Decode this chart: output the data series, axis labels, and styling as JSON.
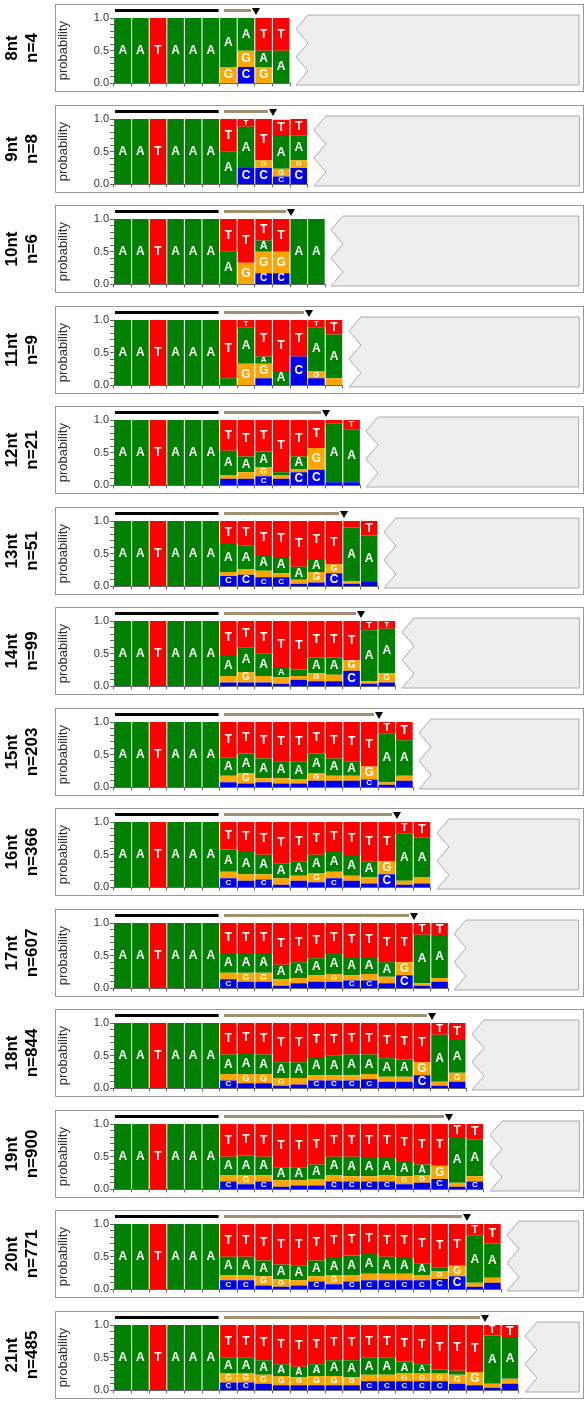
{
  "chart_data": [
    {
      "type": "bar",
      "title": "8nt",
      "subtitle": "n=4",
      "ylabel": "probability",
      "stacked": true,
      "ylim": [
        0,
        1
      ],
      "yticks": [
        {
          "value": 0,
          "label": "0.0"
        },
        {
          "value": 0.1,
          "label": null
        },
        {
          "value": 0.2,
          "label": null
        },
        {
          "value": 0.3,
          "label": null
        },
        {
          "value": 0.4,
          "label": null
        },
        {
          "value": 0.5,
          "label": "0.5"
        },
        {
          "value": 0.6,
          "label": null
        },
        {
          "value": 0.7,
          "label": null
        },
        {
          "value": 0.8,
          "label": null
        },
        {
          "value": 0.9,
          "label": null
        },
        {
          "value": 1,
          "label": "1.0"
        }
      ],
      "tick_labels": "y",
      "legend": false,
      "categories": [
        null,
        null,
        null,
        null,
        null,
        null,
        null,
        null,
        null,
        null
      ],
      "series": [
        {
          "name": "C",
          "color": "#0000ee",
          "values": [
            0,
            0,
            0,
            0,
            0,
            0,
            0,
            0.25,
            0,
            0
          ]
        },
        {
          "name": "G",
          "color": "#ffa500",
          "values": [
            0,
            0,
            0,
            0,
            0,
            0,
            0.25,
            0.25,
            0.25,
            0
          ]
        },
        {
          "name": "A",
          "color": "#008000",
          "values": [
            1,
            1,
            0,
            1,
            1,
            1,
            0.75,
            0.5,
            0.25,
            0.5
          ]
        },
        {
          "name": "T",
          "color": "#ff0000",
          "values": [
            0,
            0,
            1,
            0,
            0,
            0,
            0,
            0,
            0.5,
            0.5
          ]
        }
      ]
    },
    {
      "type": "bar",
      "title": "9nt",
      "subtitle": "n=8",
      "ylabel": "probability",
      "stacked": true,
      "ylim": [
        0,
        1
      ],
      "yticks": [
        {
          "value": 0,
          "label": "0.0"
        },
        {
          "value": 0.1,
          "label": null
        },
        {
          "value": 0.2,
          "label": null
        },
        {
          "value": 0.3,
          "label": null
        },
        {
          "value": 0.4,
          "label": null
        },
        {
          "value": 0.5,
          "label": "0.5"
        },
        {
          "value": 0.6,
          "label": null
        },
        {
          "value": 0.7,
          "label": null
        },
        {
          "value": 0.8,
          "label": null
        },
        {
          "value": 0.9,
          "label": null
        },
        {
          "value": 1,
          "label": "1.0"
        }
      ],
      "tick_labels": "y",
      "legend": false,
      "categories": [
        null,
        null,
        null,
        null,
        null,
        null,
        null,
        null,
        null,
        null,
        null
      ],
      "series": [
        {
          "name": "C",
          "color": "#0000ee",
          "values": [
            0,
            0,
            0,
            0,
            0,
            0,
            0,
            0.25,
            0.25,
            0.12,
            0.25
          ]
        },
        {
          "name": "G",
          "color": "#ffa500",
          "values": [
            0,
            0,
            0,
            0,
            0,
            0,
            0,
            0,
            0.12,
            0.12,
            0.12
          ]
        },
        {
          "name": "A",
          "color": "#008000",
          "values": [
            1,
            1,
            0,
            1,
            1,
            1,
            0.5,
            0.63,
            0,
            0.5,
            0.38
          ]
        },
        {
          "name": "T",
          "color": "#ff0000",
          "values": [
            0,
            0,
            1,
            0,
            0,
            0,
            0.5,
            0.12,
            0.63,
            0.25,
            0.25
          ]
        }
      ]
    },
    {
      "type": "bar",
      "title": "10nt",
      "subtitle": "n=6",
      "ylabel": "probability",
      "stacked": true,
      "ylim": [
        0,
        1
      ],
      "yticks": [
        {
          "value": 0,
          "label": "0.0"
        },
        {
          "value": 0.1,
          "label": null
        },
        {
          "value": 0.2,
          "label": null
        },
        {
          "value": 0.3,
          "label": null
        },
        {
          "value": 0.4,
          "label": null
        },
        {
          "value": 0.5,
          "label": "0.5"
        },
        {
          "value": 0.6,
          "label": null
        },
        {
          "value": 0.7,
          "label": null
        },
        {
          "value": 0.8,
          "label": null
        },
        {
          "value": 0.9,
          "label": null
        },
        {
          "value": 1,
          "label": "1.0"
        }
      ],
      "tick_labels": "y",
      "legend": false,
      "categories": [
        null,
        null,
        null,
        null,
        null,
        null,
        null,
        null,
        null,
        null,
        null,
        null
      ],
      "series": [
        {
          "name": "C",
          "color": "#0000ee",
          "values": [
            0,
            0,
            0,
            0,
            0,
            0,
            0,
            0,
            0.17,
            0.17,
            0,
            0
          ]
        },
        {
          "name": "G",
          "color": "#ffa500",
          "values": [
            0,
            0,
            0,
            0,
            0,
            0,
            0,
            0.33,
            0.33,
            0.33,
            0,
            0
          ]
        },
        {
          "name": "A",
          "color": "#008000",
          "values": [
            1,
            1,
            0,
            1,
            1,
            1,
            0.5,
            0,
            0.17,
            0,
            1,
            1
          ]
        },
        {
          "name": "T",
          "color": "#ff0000",
          "values": [
            0,
            0,
            1,
            0,
            0,
            0,
            0.5,
            0.67,
            0.33,
            0.5,
            0,
            0
          ]
        }
      ]
    },
    {
      "type": "bar",
      "title": "11nt",
      "subtitle": "n=9",
      "ylabel": "probability",
      "stacked": true,
      "ylim": [
        0,
        1
      ],
      "yticks": [
        {
          "value": 0,
          "label": "0.0"
        },
        {
          "value": 0.1,
          "label": null
        },
        {
          "value": 0.2,
          "label": null
        },
        {
          "value": 0.3,
          "label": null
        },
        {
          "value": 0.4,
          "label": null
        },
        {
          "value": 0.5,
          "label": "0.5"
        },
        {
          "value": 0.6,
          "label": null
        },
        {
          "value": 0.7,
          "label": null
        },
        {
          "value": 0.8,
          "label": null
        },
        {
          "value": 0.9,
          "label": null
        },
        {
          "value": 1,
          "label": "1.0"
        }
      ],
      "tick_labels": "y",
      "legend": false,
      "categories": [
        null,
        null,
        null,
        null,
        null,
        null,
        null,
        null,
        null,
        null,
        null,
        null,
        null
      ],
      "series": [
        {
          "name": "C",
          "color": "#0000ee",
          "values": [
            0,
            0,
            0,
            0,
            0,
            0,
            0,
            0,
            0.11,
            0,
            0.44,
            0.11,
            0
          ]
        },
        {
          "name": "G",
          "color": "#ffa500",
          "values": [
            0,
            0,
            0,
            0,
            0,
            0,
            0,
            0.33,
            0.22,
            0,
            0,
            0.11,
            0.11
          ]
        },
        {
          "name": "A",
          "color": "#008000",
          "values": [
            1,
            1,
            0,
            1,
            1,
            1,
            0.11,
            0.56,
            0.11,
            0.22,
            0,
            0.67,
            0.67
          ]
        },
        {
          "name": "T",
          "color": "#ff0000",
          "values": [
            0,
            0,
            1,
            0,
            0,
            0,
            0.89,
            0.11,
            0.56,
            0.78,
            0.56,
            0.11,
            0.22
          ]
        }
      ]
    },
    {
      "type": "bar",
      "title": "12nt",
      "subtitle": "n=21",
      "ylabel": "probability",
      "stacked": true,
      "ylim": [
        0,
        1
      ],
      "yticks": [
        {
          "value": 0,
          "label": "0.0"
        },
        {
          "value": 0.1,
          "label": null
        },
        {
          "value": 0.2,
          "label": null
        },
        {
          "value": 0.3,
          "label": null
        },
        {
          "value": 0.4,
          "label": null
        },
        {
          "value": 0.5,
          "label": "0.5"
        },
        {
          "value": 0.6,
          "label": null
        },
        {
          "value": 0.7,
          "label": null
        },
        {
          "value": 0.8,
          "label": null
        },
        {
          "value": 0.9,
          "label": null
        },
        {
          "value": 1,
          "label": "1.0"
        }
      ],
      "tick_labels": "y",
      "legend": false,
      "categories": [
        null,
        null,
        null,
        null,
        null,
        null,
        null,
        null,
        null,
        null,
        null,
        null,
        null,
        null
      ],
      "series": [
        {
          "name": "C",
          "color": "#0000ee",
          "values": [
            0,
            0,
            0,
            0,
            0,
            0,
            0.1,
            0.1,
            0.14,
            0.1,
            0.2,
            0.24,
            0.05,
            0.05
          ]
        },
        {
          "name": "G",
          "color": "#ffa500",
          "values": [
            0,
            0,
            0,
            0,
            0,
            0,
            0.05,
            0.1,
            0.14,
            0.05,
            0.05,
            0.33,
            0,
            0
          ]
        },
        {
          "name": "A",
          "color": "#008000",
          "values": [
            1,
            1,
            0,
            1,
            1,
            1,
            0.38,
            0.24,
            0.24,
            0.05,
            0.19,
            0,
            0.9,
            0.81
          ]
        },
        {
          "name": "T",
          "color": "#ff0000",
          "values": [
            0,
            0,
            1,
            0,
            0,
            0,
            0.47,
            0.56,
            0.48,
            0.8,
            0.56,
            0.43,
            0.05,
            0.14
          ]
        }
      ]
    },
    {
      "type": "bar",
      "title": "13nt",
      "subtitle": "n=51",
      "ylabel": "probability",
      "stacked": true,
      "ylim": [
        0,
        1
      ],
      "yticks": [
        {
          "value": 0,
          "label": "0.0"
        },
        {
          "value": 0.1,
          "label": null
        },
        {
          "value": 0.2,
          "label": null
        },
        {
          "value": 0.3,
          "label": null
        },
        {
          "value": 0.4,
          "label": null
        },
        {
          "value": 0.5,
          "label": "0.5"
        },
        {
          "value": 0.6,
          "label": null
        },
        {
          "value": 0.7,
          "label": null
        },
        {
          "value": 0.8,
          "label": null
        },
        {
          "value": 0.9,
          "label": null
        },
        {
          "value": 1,
          "label": "1.0"
        }
      ],
      "tick_labels": "y",
      "legend": false,
      "categories": [
        null,
        null,
        null,
        null,
        null,
        null,
        null,
        null,
        null,
        null,
        null,
        null,
        null,
        null,
        null
      ],
      "series": [
        {
          "name": "C",
          "color": "#0000ee",
          "values": [
            0,
            0,
            0,
            0,
            0,
            0,
            0.16,
            0.18,
            0.14,
            0.14,
            0.04,
            0.06,
            0.2,
            0.04,
            0.08
          ]
        },
        {
          "name": "G",
          "color": "#ffa500",
          "values": [
            0,
            0,
            0,
            0,
            0,
            0,
            0.06,
            0.08,
            0.1,
            0.06,
            0.06,
            0.16,
            0.14,
            0.04,
            0
          ]
        },
        {
          "name": "A",
          "color": "#008000",
          "values": [
            1,
            1,
            0,
            1,
            1,
            1,
            0.43,
            0.37,
            0.24,
            0.25,
            0.2,
            0.2,
            0,
            0.82,
            0.7
          ]
        },
        {
          "name": "T",
          "color": "#ff0000",
          "values": [
            0,
            0,
            1,
            0,
            0,
            0,
            0.35,
            0.37,
            0.52,
            0.55,
            0.7,
            0.58,
            0.66,
            0.1,
            0.22
          ]
        }
      ]
    },
    {
      "type": "bar",
      "title": "14nt",
      "subtitle": "n=99",
      "ylabel": "probability",
      "stacked": true,
      "ylim": [
        0,
        1
      ],
      "yticks": [
        {
          "value": 0,
          "label": "0.0"
        },
        {
          "value": 0.1,
          "label": null
        },
        {
          "value": 0.2,
          "label": null
        },
        {
          "value": 0.3,
          "label": null
        },
        {
          "value": 0.4,
          "label": null
        },
        {
          "value": 0.5,
          "label": "0.5"
        },
        {
          "value": 0.6,
          "label": null
        },
        {
          "value": 0.7,
          "label": null
        },
        {
          "value": 0.8,
          "label": null
        },
        {
          "value": 0.9,
          "label": null
        },
        {
          "value": 1,
          "label": "1.0"
        }
      ],
      "tick_labels": "y",
      "legend": false,
      "categories": [
        null,
        null,
        null,
        null,
        null,
        null,
        null,
        null,
        null,
        null,
        null,
        null,
        null,
        null,
        null,
        null
      ],
      "series": [
        {
          "name": "C",
          "color": "#0000ee",
          "values": [
            0,
            0,
            0,
            0,
            0,
            0,
            0.06,
            0.06,
            0.06,
            0.04,
            0.1,
            0.08,
            0.08,
            0.24,
            0.04,
            0.06
          ]
        },
        {
          "name": "G",
          "color": "#ffa500",
          "values": [
            0,
            0,
            0,
            0,
            0,
            0,
            0.1,
            0.16,
            0.1,
            0.1,
            0.06,
            0.12,
            0.1,
            0.16,
            0.04,
            0.14
          ]
        },
        {
          "name": "A",
          "color": "#008000",
          "values": [
            1,
            1,
            0,
            1,
            1,
            1,
            0.32,
            0.38,
            0.34,
            0.14,
            0.1,
            0.24,
            0.26,
            0,
            0.78,
            0.68
          ]
        },
        {
          "name": "T",
          "color": "#ff0000",
          "values": [
            0,
            0,
            1,
            0,
            0,
            0,
            0.52,
            0.4,
            0.5,
            0.72,
            0.74,
            0.56,
            0.56,
            0.6,
            0.14,
            0.12
          ]
        }
      ]
    },
    {
      "type": "bar",
      "title": "15nt",
      "subtitle": "n=203",
      "ylabel": "probability",
      "stacked": true,
      "ylim": [
        0,
        1
      ],
      "yticks": [
        {
          "value": 0,
          "label": "0.0"
        },
        {
          "value": 0.1,
          "label": null
        },
        {
          "value": 0.2,
          "label": null
        },
        {
          "value": 0.3,
          "label": null
        },
        {
          "value": 0.4,
          "label": null
        },
        {
          "value": 0.5,
          "label": "0.5"
        },
        {
          "value": 0.6,
          "label": null
        },
        {
          "value": 0.7,
          "label": null
        },
        {
          "value": 0.8,
          "label": null
        },
        {
          "value": 0.9,
          "label": null
        },
        {
          "value": 1,
          "label": "1.0"
        }
      ],
      "tick_labels": "y",
      "legend": false,
      "categories": [
        null,
        null,
        null,
        null,
        null,
        null,
        null,
        null,
        null,
        null,
        null,
        null,
        null,
        null,
        null,
        null,
        null
      ],
      "series": [
        {
          "name": "C",
          "color": "#0000ee",
          "values": [
            0,
            0,
            0,
            0,
            0,
            0,
            0.08,
            0.06,
            0.08,
            0.06,
            0.06,
            0.1,
            0.1,
            0.1,
            0.12,
            0.04,
            0.1
          ]
        },
        {
          "name": "G",
          "color": "#ffa500",
          "values": [
            0,
            0,
            0,
            0,
            0,
            0,
            0.1,
            0.16,
            0.06,
            0.08,
            0.06,
            0.12,
            0.08,
            0.08,
            0.2,
            0.04,
            0.08
          ]
        },
        {
          "name": "A",
          "color": "#008000",
          "values": [
            1,
            1,
            0,
            1,
            1,
            1,
            0.28,
            0.3,
            0.3,
            0.26,
            0.28,
            0.3,
            0.26,
            0.22,
            0,
            0.74,
            0.54
          ]
        },
        {
          "name": "T",
          "color": "#ff0000",
          "values": [
            0,
            0,
            1,
            0,
            0,
            0,
            0.54,
            0.48,
            0.56,
            0.6,
            0.6,
            0.48,
            0.56,
            0.6,
            0.68,
            0.18,
            0.28
          ]
        }
      ]
    },
    {
      "type": "bar",
      "title": "16nt",
      "subtitle": "n=366",
      "ylabel": "probability",
      "stacked": true,
      "ylim": [
        0,
        1
      ],
      "yticks": [
        {
          "value": 0,
          "label": "0.0"
        },
        {
          "value": 0.1,
          "label": null
        },
        {
          "value": 0.2,
          "label": null
        },
        {
          "value": 0.3,
          "label": null
        },
        {
          "value": 0.4,
          "label": null
        },
        {
          "value": 0.5,
          "label": "0.5"
        },
        {
          "value": 0.6,
          "label": null
        },
        {
          "value": 0.7,
          "label": null
        },
        {
          "value": 0.8,
          "label": null
        },
        {
          "value": 0.9,
          "label": null
        },
        {
          "value": 1,
          "label": "1.0"
        }
      ],
      "tick_labels": "y",
      "legend": false,
      "categories": [
        null,
        null,
        null,
        null,
        null,
        null,
        null,
        null,
        null,
        null,
        null,
        null,
        null,
        null,
        null,
        null,
        null,
        null
      ],
      "series": [
        {
          "name": "C",
          "color": "#0000ee",
          "values": [
            0,
            0,
            0,
            0,
            0,
            0,
            0.14,
            0.1,
            0.12,
            0.04,
            0.1,
            0.08,
            0.14,
            0.1,
            0.06,
            0.2,
            0.04,
            0.06
          ]
        },
        {
          "name": "G",
          "color": "#ffa500",
          "values": [
            0,
            0,
            0,
            0,
            0,
            0,
            0.1,
            0.1,
            0.08,
            0.1,
            0.08,
            0.14,
            0.1,
            0.08,
            0.1,
            0.2,
            0.06,
            0.1
          ]
        },
        {
          "name": "A",
          "color": "#008000",
          "values": [
            1,
            1,
            0,
            1,
            1,
            1,
            0.34,
            0.34,
            0.3,
            0.22,
            0.22,
            0.28,
            0.3,
            0.3,
            0.24,
            0,
            0.72,
            0.6
          ]
        },
        {
          "name": "T",
          "color": "#ff0000",
          "values": [
            0,
            0,
            1,
            0,
            0,
            0,
            0.42,
            0.46,
            0.5,
            0.64,
            0.6,
            0.5,
            0.46,
            0.52,
            0.6,
            0.6,
            0.18,
            0.24
          ]
        }
      ]
    },
    {
      "type": "bar",
      "title": "17nt",
      "subtitle": "n=607",
      "ylabel": "probability",
      "stacked": true,
      "ylim": [
        0,
        1
      ],
      "yticks": [
        {
          "value": 0,
          "label": "0.0"
        },
        {
          "value": 0.1,
          "label": null
        },
        {
          "value": 0.2,
          "label": null
        },
        {
          "value": 0.3,
          "label": null
        },
        {
          "value": 0.4,
          "label": null
        },
        {
          "value": 0.5,
          "label": "0.5"
        },
        {
          "value": 0.6,
          "label": null
        },
        {
          "value": 0.7,
          "label": null
        },
        {
          "value": 0.8,
          "label": null
        },
        {
          "value": 0.9,
          "label": null
        },
        {
          "value": 1,
          "label": "1.0"
        }
      ],
      "tick_labels": "y",
      "legend": false,
      "categories": [
        null,
        null,
        null,
        null,
        null,
        null,
        null,
        null,
        null,
        null,
        null,
        null,
        null,
        null,
        null,
        null,
        null,
        null,
        null
      ],
      "series": [
        {
          "name": "C",
          "color": "#0000ee",
          "values": [
            0,
            0,
            0,
            0,
            0,
            0,
            0.14,
            0.1,
            0.1,
            0.04,
            0.08,
            0.1,
            0.1,
            0.12,
            0.12,
            0.08,
            0.2,
            0.04,
            0.1
          ]
        },
        {
          "name": "G",
          "color": "#ffa500",
          "values": [
            0,
            0,
            0,
            0,
            0,
            0,
            0.1,
            0.14,
            0.14,
            0.1,
            0.08,
            0.1,
            0.12,
            0.08,
            0.1,
            0.1,
            0.2,
            0.04,
            0.06
          ]
        },
        {
          "name": "A",
          "color": "#008000",
          "values": [
            1,
            1,
            0,
            1,
            1,
            1,
            0.3,
            0.3,
            0.3,
            0.22,
            0.24,
            0.26,
            0.32,
            0.28,
            0.26,
            0.22,
            0,
            0.74,
            0.64
          ]
        },
        {
          "name": "T",
          "color": "#ff0000",
          "values": [
            0,
            0,
            1,
            0,
            0,
            0,
            0.46,
            0.46,
            0.46,
            0.64,
            0.6,
            0.54,
            0.46,
            0.52,
            0.52,
            0.6,
            0.6,
            0.18,
            0.2
          ]
        }
      ]
    },
    {
      "type": "bar",
      "title": "18nt",
      "subtitle": "n=844",
      "ylabel": "probability",
      "stacked": true,
      "ylim": [
        0,
        1
      ],
      "yticks": [
        {
          "value": 0,
          "label": "0.0"
        },
        {
          "value": 0.1,
          "label": null
        },
        {
          "value": 0.2,
          "label": null
        },
        {
          "value": 0.3,
          "label": null
        },
        {
          "value": 0.4,
          "label": null
        },
        {
          "value": 0.5,
          "label": "0.5"
        },
        {
          "value": 0.6,
          "label": null
        },
        {
          "value": 0.7,
          "label": null
        },
        {
          "value": 0.8,
          "label": null
        },
        {
          "value": 0.9,
          "label": null
        },
        {
          "value": 1,
          "label": "1.0"
        }
      ],
      "tick_labels": "y",
      "legend": false,
      "categories": [
        null,
        null,
        null,
        null,
        null,
        null,
        null,
        null,
        null,
        null,
        null,
        null,
        null,
        null,
        null,
        null,
        null,
        null,
        null,
        null
      ],
      "series": [
        {
          "name": "C",
          "color": "#0000ee",
          "values": [
            0,
            0,
            0,
            0,
            0,
            0,
            0.12,
            0.08,
            0.08,
            0.04,
            0.06,
            0.12,
            0.12,
            0.12,
            0.14,
            0.1,
            0.1,
            0.2,
            0.04,
            0.1
          ]
        },
        {
          "name": "G",
          "color": "#ffa500",
          "values": [
            0,
            0,
            0,
            0,
            0,
            0,
            0.1,
            0.14,
            0.14,
            0.12,
            0.1,
            0.08,
            0.08,
            0.08,
            0.08,
            0.08,
            0.08,
            0.2,
            0.06,
            0.14
          ]
        },
        {
          "name": "A",
          "color": "#008000",
          "values": [
            1,
            1,
            0,
            1,
            1,
            1,
            0.3,
            0.32,
            0.3,
            0.24,
            0.24,
            0.28,
            0.3,
            0.32,
            0.3,
            0.28,
            0.26,
            0,
            0.72,
            0.5
          ]
        },
        {
          "name": "T",
          "color": "#ff0000",
          "values": [
            0,
            0,
            1,
            0,
            0,
            0,
            0.48,
            0.46,
            0.48,
            0.6,
            0.6,
            0.52,
            0.5,
            0.48,
            0.48,
            0.54,
            0.56,
            0.6,
            0.18,
            0.26
          ]
        }
      ]
    },
    {
      "type": "bar",
      "title": "19nt",
      "subtitle": "n=900",
      "ylabel": "probability",
      "stacked": true,
      "ylim": [
        0,
        1
      ],
      "yticks": [
        {
          "value": 0,
          "label": "0.0"
        },
        {
          "value": 0.1,
          "label": null
        },
        {
          "value": 0.2,
          "label": null
        },
        {
          "value": 0.3,
          "label": null
        },
        {
          "value": 0.4,
          "label": null
        },
        {
          "value": 0.5,
          "label": "0.5"
        },
        {
          "value": 0.6,
          "label": null
        },
        {
          "value": 0.7,
          "label": null
        },
        {
          "value": 0.8,
          "label": null
        },
        {
          "value": 0.9,
          "label": null
        },
        {
          "value": 1,
          "label": "1.0"
        }
      ],
      "tick_labels": "y",
      "legend": false,
      "categories": [
        null,
        null,
        null,
        null,
        null,
        null,
        null,
        null,
        null,
        null,
        null,
        null,
        null,
        null,
        null,
        null,
        null,
        null,
        null,
        null,
        null
      ],
      "series": [
        {
          "name": "C",
          "color": "#0000ee",
          "values": [
            0,
            0,
            0,
            0,
            0,
            0,
            0.12,
            0.08,
            0.12,
            0.04,
            0.06,
            0.06,
            0.12,
            0.12,
            0.12,
            0.12,
            0.08,
            0.1,
            0.16,
            0.04,
            0.12
          ]
        },
        {
          "name": "G",
          "color": "#ffa500",
          "values": [
            0,
            0,
            0,
            0,
            0,
            0,
            0.1,
            0.14,
            0.1,
            0.1,
            0.08,
            0.1,
            0.1,
            0.08,
            0.08,
            0.1,
            0.12,
            0.12,
            0.2,
            0.06,
            0.08
          ]
        },
        {
          "name": "A",
          "color": "#008000",
          "values": [
            1,
            1,
            0,
            1,
            1,
            1,
            0.28,
            0.3,
            0.28,
            0.2,
            0.2,
            0.22,
            0.28,
            0.3,
            0.28,
            0.26,
            0.22,
            0.16,
            0,
            0.7,
            0.56
          ]
        },
        {
          "name": "T",
          "color": "#ff0000",
          "values": [
            0,
            0,
            1,
            0,
            0,
            0,
            0.5,
            0.48,
            0.5,
            0.66,
            0.66,
            0.62,
            0.5,
            0.5,
            0.52,
            0.52,
            0.58,
            0.62,
            0.64,
            0.2,
            0.24
          ]
        }
      ]
    },
    {
      "type": "bar",
      "title": "20nt",
      "subtitle": "n=771",
      "ylabel": "probability",
      "stacked": true,
      "ylim": [
        0,
        1
      ],
      "yticks": [
        {
          "value": 0,
          "label": "0.0"
        },
        {
          "value": 0.1,
          "label": null
        },
        {
          "value": 0.2,
          "label": null
        },
        {
          "value": 0.3,
          "label": null
        },
        {
          "value": 0.4,
          "label": null
        },
        {
          "value": 0.5,
          "label": "0.5"
        },
        {
          "value": 0.6,
          "label": null
        },
        {
          "value": 0.7,
          "label": null
        },
        {
          "value": 0.8,
          "label": null
        },
        {
          "value": 0.9,
          "label": null
        },
        {
          "value": 1,
          "label": "1.0"
        }
      ],
      "tick_labels": "y",
      "legend": false,
      "categories": [
        null,
        null,
        null,
        null,
        null,
        null,
        null,
        null,
        null,
        null,
        null,
        null,
        null,
        null,
        null,
        null,
        null,
        null,
        null,
        null,
        null,
        null
      ],
      "series": [
        {
          "name": "C",
          "color": "#0000ee",
          "values": [
            0,
            0,
            0,
            0,
            0,
            0,
            0.14,
            0.14,
            0.06,
            0.04,
            0.06,
            0.12,
            0.08,
            0.12,
            0.14,
            0.14,
            0.14,
            0.14,
            0.16,
            0.2,
            0.04,
            0.1
          ]
        },
        {
          "name": "G",
          "color": "#ffa500",
          "values": [
            0,
            0,
            0,
            0,
            0,
            0,
            0.08,
            0.08,
            0.14,
            0.12,
            0.08,
            0.08,
            0.14,
            0.1,
            0.1,
            0.1,
            0.1,
            0.08,
            0.12,
            0.16,
            0.06,
            0.08
          ]
        },
        {
          "name": "A",
          "color": "#008000",
          "values": [
            1,
            1,
            0,
            1,
            1,
            1,
            0.28,
            0.28,
            0.24,
            0.22,
            0.22,
            0.24,
            0.26,
            0.3,
            0.3,
            0.26,
            0.24,
            0.18,
            0.06,
            0,
            0.72,
            0.52
          ]
        },
        {
          "name": "T",
          "color": "#ff0000",
          "values": [
            0,
            0,
            1,
            0,
            0,
            0,
            0.5,
            0.5,
            0.56,
            0.62,
            0.64,
            0.56,
            0.52,
            0.48,
            0.46,
            0.5,
            0.52,
            0.6,
            0.66,
            0.64,
            0.18,
            0.3
          ]
        }
      ]
    },
    {
      "type": "bar",
      "title": "21nt",
      "subtitle": "n=485",
      "ylabel": "probability",
      "stacked": true,
      "ylim": [
        0,
        1
      ],
      "yticks": [
        {
          "value": 0,
          "label": "0.0"
        },
        {
          "value": 0.1,
          "label": null
        },
        {
          "value": 0.2,
          "label": null
        },
        {
          "value": 0.3,
          "label": null
        },
        {
          "value": 0.4,
          "label": null
        },
        {
          "value": 0.5,
          "label": "0.5"
        },
        {
          "value": 0.6,
          "label": null
        },
        {
          "value": 0.7,
          "label": null
        },
        {
          "value": 0.8,
          "label": null
        },
        {
          "value": 0.9,
          "label": null
        },
        {
          "value": 1,
          "label": "1.0"
        }
      ],
      "tick_labels": "y",
      "legend": false,
      "categories": [
        null,
        null,
        null,
        null,
        null,
        null,
        null,
        null,
        null,
        null,
        null,
        null,
        null,
        null,
        null,
        null,
        null,
        null,
        null,
        null,
        null,
        null,
        null
      ],
      "series": [
        {
          "name": "C",
          "color": "#0000ee",
          "values": [
            0,
            0,
            0,
            0,
            0,
            0,
            0.12,
            0.12,
            0.1,
            0.08,
            0.08,
            0.08,
            0.08,
            0.08,
            0.14,
            0.14,
            0.14,
            0.14,
            0.14,
            0.1,
            0.08,
            0.04,
            0.1
          ]
        },
        {
          "name": "G",
          "color": "#ffa500",
          "values": [
            0,
            0,
            0,
            0,
            0,
            0,
            0.14,
            0.14,
            0.14,
            0.14,
            0.12,
            0.14,
            0.14,
            0.12,
            0.1,
            0.1,
            0.12,
            0.12,
            0.12,
            0.14,
            0.2,
            0.06,
            0.08
          ]
        },
        {
          "name": "A",
          "color": "#008000",
          "values": [
            1,
            1,
            0,
            1,
            1,
            1,
            0.24,
            0.24,
            0.22,
            0.18,
            0.16,
            0.18,
            0.24,
            0.26,
            0.26,
            0.26,
            0.18,
            0.14,
            0.06,
            0.06,
            0,
            0.74,
            0.62
          ]
        },
        {
          "name": "T",
          "color": "#ff0000",
          "values": [
            0,
            0,
            1,
            0,
            0,
            0,
            0.5,
            0.5,
            0.54,
            0.6,
            0.64,
            0.6,
            0.54,
            0.54,
            0.5,
            0.5,
            0.56,
            0.6,
            0.68,
            0.7,
            0.72,
            0.16,
            0.2
          ]
        }
      ]
    }
  ]
}
